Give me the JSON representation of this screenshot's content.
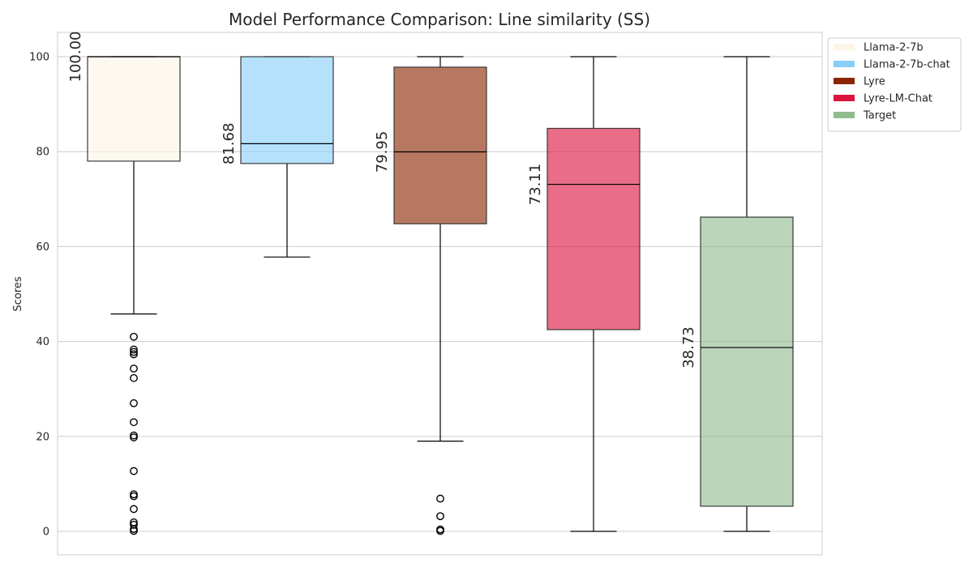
{
  "chart_data": {
    "type": "box",
    "title": "Model Performance Comparison: Line similarity (SS)",
    "xlabel": "",
    "ylabel": "Scores",
    "ylim": [
      -5,
      105
    ],
    "yticks": [
      0,
      20,
      40,
      60,
      80,
      100
    ],
    "grid": true,
    "legend_position": "outside-top-right",
    "series": [
      {
        "name": "Llama-2-7b",
        "color": "#FDF5E6",
        "median_label": "100.00",
        "whisker_low": 45.8,
        "q1": 78.0,
        "median": 100.0,
        "q3": 100.0,
        "whisker_high": 100.0,
        "outliers": [
          41.0,
          38.3,
          37.8,
          37.3,
          34.3,
          32.3,
          27.0,
          23.0,
          20.2,
          19.8,
          12.7,
          7.8,
          7.4,
          4.7,
          1.9,
          1.4,
          0.5,
          0.1
        ]
      },
      {
        "name": "Llama-2-7b-chat",
        "color": "#87CEFA",
        "median_label": "81.68",
        "whisker_low": 57.8,
        "q1": 77.5,
        "median": 81.68,
        "q3": 100.0,
        "whisker_high": 100.0,
        "outliers": []
      },
      {
        "name": "Lyre",
        "color": "#8B2500",
        "median_label": "79.95",
        "whisker_low": 19.0,
        "q1": 64.8,
        "median": 79.95,
        "q3": 97.8,
        "whisker_high": 100.0,
        "outliers": [
          6.9,
          3.2,
          0.4,
          0.1
        ]
      },
      {
        "name": "Lyre-LM-Chat",
        "color": "#DC143C",
        "median_label": "73.11",
        "whisker_low": 0.0,
        "q1": 42.5,
        "median": 73.11,
        "q3": 84.9,
        "whisker_high": 100.0,
        "outliers": []
      },
      {
        "name": "Target",
        "color": "#8FBC8F",
        "median_label": "38.73",
        "whisker_low": 0.0,
        "q1": 5.3,
        "median": 38.73,
        "q3": 66.2,
        "whisker_high": 100.0,
        "outliers": []
      }
    ]
  }
}
